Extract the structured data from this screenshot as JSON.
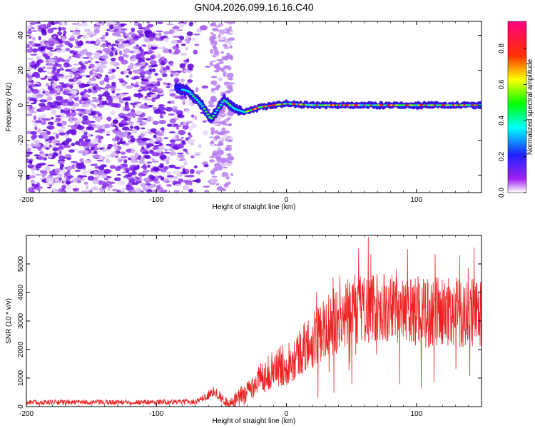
{
  "title": "GN04.2026.099.16.16.C40",
  "chart_data": [
    {
      "type": "heatmap",
      "title": "GN04.2026.099.16.16.C40",
      "xlabel": "Height of straight line (km)",
      "ylabel": "Frequency (Hz)",
      "xlim": [
        -200,
        150
      ],
      "ylim": [
        -50,
        48
      ],
      "xticks": [
        -200,
        -100,
        0,
        100
      ],
      "yticks": [
        -40,
        -20,
        0,
        20,
        40
      ],
      "colorbar": {
        "label": "Normalized spectral amplitude",
        "range": [
          0,
          0.95
        ],
        "ticks": [
          0.0,
          0.2,
          0.4,
          0.6,
          0.8
        ],
        "tick_labels": [
          "0.0",
          "0.2",
          "0.4",
          "0.6",
          "0.8"
        ],
        "colors": [
          "#ffffff",
          "#a020f0",
          "#2020ff",
          "#00ffff",
          "#00ff00",
          "#ffff00",
          "#ff0000",
          "#ff00ff"
        ]
      },
      "features": {
        "noise_region_x": [
          -200,
          -45
        ],
        "gap_region_x": [
          -70,
          -58
        ],
        "ridge_x": [
          -85,
          150
        ],
        "ridge_frequency_points": [
          {
            "x": -85,
            "y": 10
          },
          {
            "x": -75,
            "y": 8
          },
          {
            "x": -65,
            "y": 0
          },
          {
            "x": -58,
            "y": -8
          },
          {
            "x": -48,
            "y": 3
          },
          {
            "x": -40,
            "y": -2
          },
          {
            "x": -32,
            "y": -4
          },
          {
            "x": -20,
            "y": -1
          },
          {
            "x": 0,
            "y": 1
          },
          {
            "x": 20,
            "y": 0
          },
          {
            "x": 60,
            "y": 0
          },
          {
            "x": 100,
            "y": 0
          },
          {
            "x": 150,
            "y": 0
          }
        ]
      }
    },
    {
      "type": "line",
      "xlabel": "Height of straight line (km)",
      "ylabel": "SNR (10 * v/v)",
      "xlim": [
        -200,
        150
      ],
      "ylim": [
        0,
        6000
      ],
      "xticks": [
        -200,
        -100,
        0,
        100
      ],
      "yticks": [
        0,
        1000,
        2000,
        3000,
        4000,
        5000
      ],
      "series": [
        {
          "name": "SNR",
          "color": "#ee2222",
          "x": [
            -200,
            -150,
            -100,
            -70,
            -60,
            -55,
            -50,
            -45,
            -40,
            -35,
            -30,
            -25,
            -20,
            -10,
            0,
            10,
            20,
            30,
            40,
            50,
            60,
            70,
            80,
            90,
            100,
            110,
            120,
            130,
            140,
            150
          ],
          "y": [
            150,
            150,
            160,
            170,
            400,
            550,
            300,
            120,
            150,
            350,
            500,
            800,
            1000,
            1300,
            1500,
            1900,
            2300,
            2700,
            3100,
            3400,
            3450,
            3500,
            3400,
            3300,
            3250,
            3300,
            3300,
            3300,
            3300,
            3350
          ],
          "peak": {
            "x": 63,
            "y": 5950
          }
        }
      ]
    }
  ]
}
